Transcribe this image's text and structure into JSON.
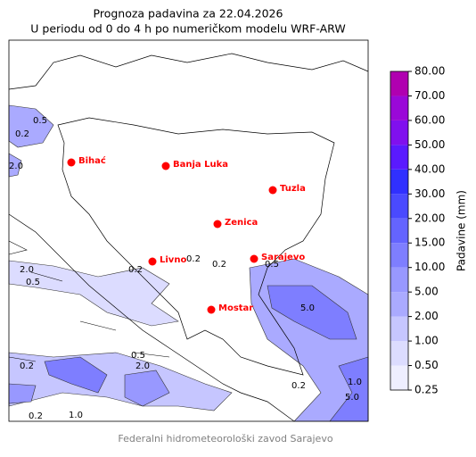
{
  "header": {
    "title": "Prognoza padavina za 22.04.2026",
    "subtitle": "U periodu od 0 do 4 h po numeričkom modelu WRF-ARW"
  },
  "cities": [
    "Bihać",
    "Banja Luka",
    "Tuzla",
    "Zenica",
    "Livno",
    "Sarajevo",
    "Mostar"
  ],
  "city_color": "#ff0000",
  "contour_labels": [
    "0.5",
    "0.2",
    "2.0",
    "0.2",
    "0.5",
    "0.2",
    "2.0",
    "0.5",
    "0.2",
    "5.0",
    "0.5",
    "2.0",
    "0.2",
    "1.0",
    "0.2",
    "1.0",
    "5.0",
    "0.2"
  ],
  "colorbar": {
    "label": "Padavine (mm)",
    "ticks": [
      {
        "value": 0.25,
        "label": "0.25"
      },
      {
        "value": 0.5,
        "label": "0.50"
      },
      {
        "value": 1,
        "label": "1.00"
      },
      {
        "value": 2,
        "label": "2.00"
      },
      {
        "value": 5,
        "label": "5.00"
      },
      {
        "value": 10,
        "label": "10.00"
      },
      {
        "value": 15,
        "label": "15.00"
      },
      {
        "value": 20,
        "label": "20.00"
      },
      {
        "value": 30,
        "label": "30.00"
      },
      {
        "value": 40,
        "label": "40.00"
      },
      {
        "value": 50,
        "label": "50.00"
      },
      {
        "value": 60,
        "label": "60.00"
      },
      {
        "value": 70,
        "label": "70.00"
      },
      {
        "value": 80,
        "label": "80.00"
      }
    ],
    "colors": [
      "#eeeeff",
      "#dcdcff",
      "#c6c6ff",
      "#aaaaff",
      "#9898ff",
      "#7e7eff",
      "#6464ff",
      "#4a4aff",
      "#3030ff",
      "#5a1aff",
      "#8010ee",
      "#9a08d8",
      "#b000b0"
    ]
  },
  "footer": "Federalni hidrometeorološki zavod Sarajevo"
}
